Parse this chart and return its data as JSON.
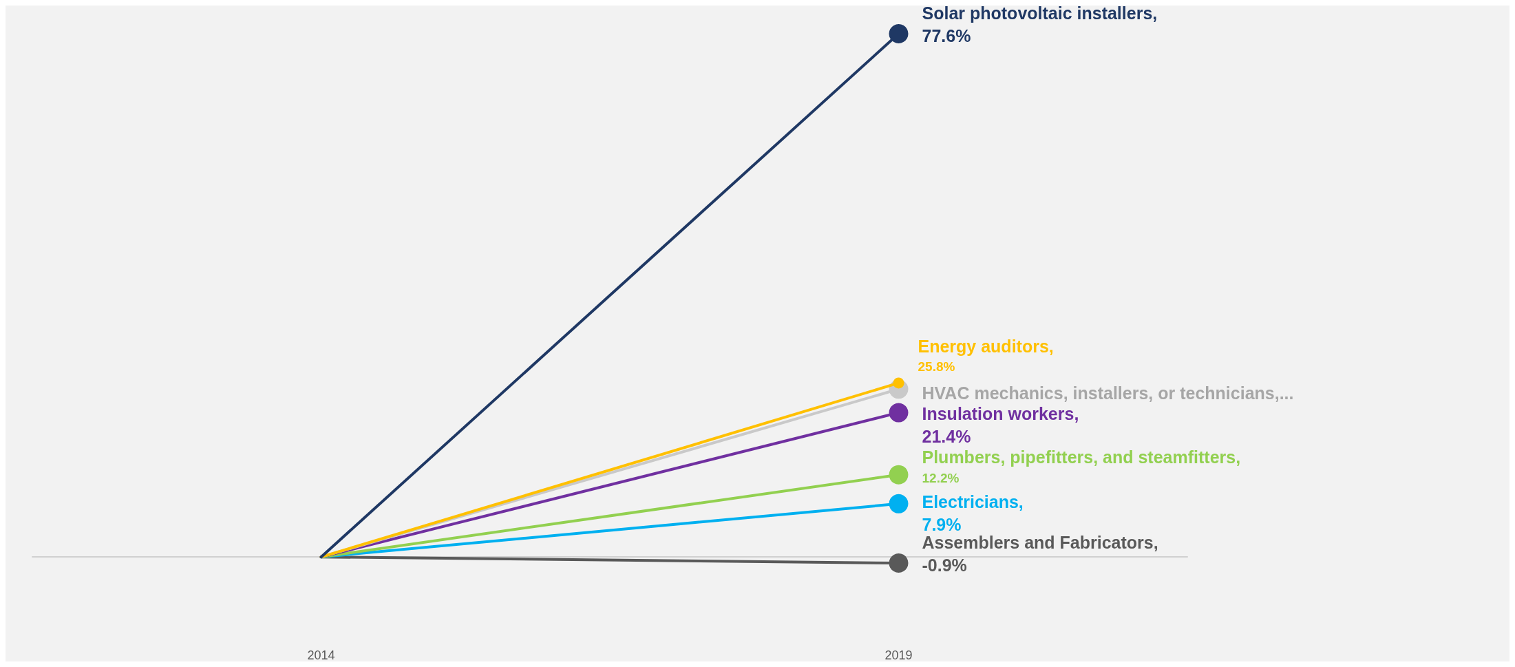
{
  "chart_data": {
    "type": "line",
    "categories": [
      "2014",
      "2019"
    ],
    "marker": "circle",
    "grid": false,
    "legend": false,
    "tick_labels": "x",
    "series": [
      {
        "name": "Solar photovoltaic installers,",
        "color": "#1f3864",
        "values": [
          0,
          77.6
        ],
        "value_labels": [
          null,
          "77.6%"
        ]
      },
      {
        "name": "Energy auditors,",
        "color": "#ffc000",
        "values": [
          0,
          25.8
        ],
        "value_labels": [
          null,
          "25.8%"
        ]
      },
      {
        "name": "HVAC mechanics, installers, or technicians,...",
        "color": "#c9c9c9",
        "values": [
          0,
          24.9
        ],
        "value_labels": [
          null,
          null
        ]
      },
      {
        "name": "Insulation workers,",
        "color": "#7030a0",
        "values": [
          0,
          21.4
        ],
        "value_labels": [
          null,
          "21.4%"
        ]
      },
      {
        "name": "Plumbers, pipefitters, and steamfitters,",
        "color": "#92d050",
        "values": [
          0,
          12.2
        ],
        "value_labels": [
          null,
          "12.2%"
        ]
      },
      {
        "name": "Electricians,",
        "color": "#00b0f0",
        "values": [
          0,
          7.9
        ],
        "value_labels": [
          null,
          "7.9%"
        ]
      },
      {
        "name": "Assemblers and Fabricators,",
        "color": "#595959",
        "values": [
          0,
          -0.9
        ],
        "value_labels": [
          null,
          "-0.9%"
        ]
      }
    ]
  }
}
